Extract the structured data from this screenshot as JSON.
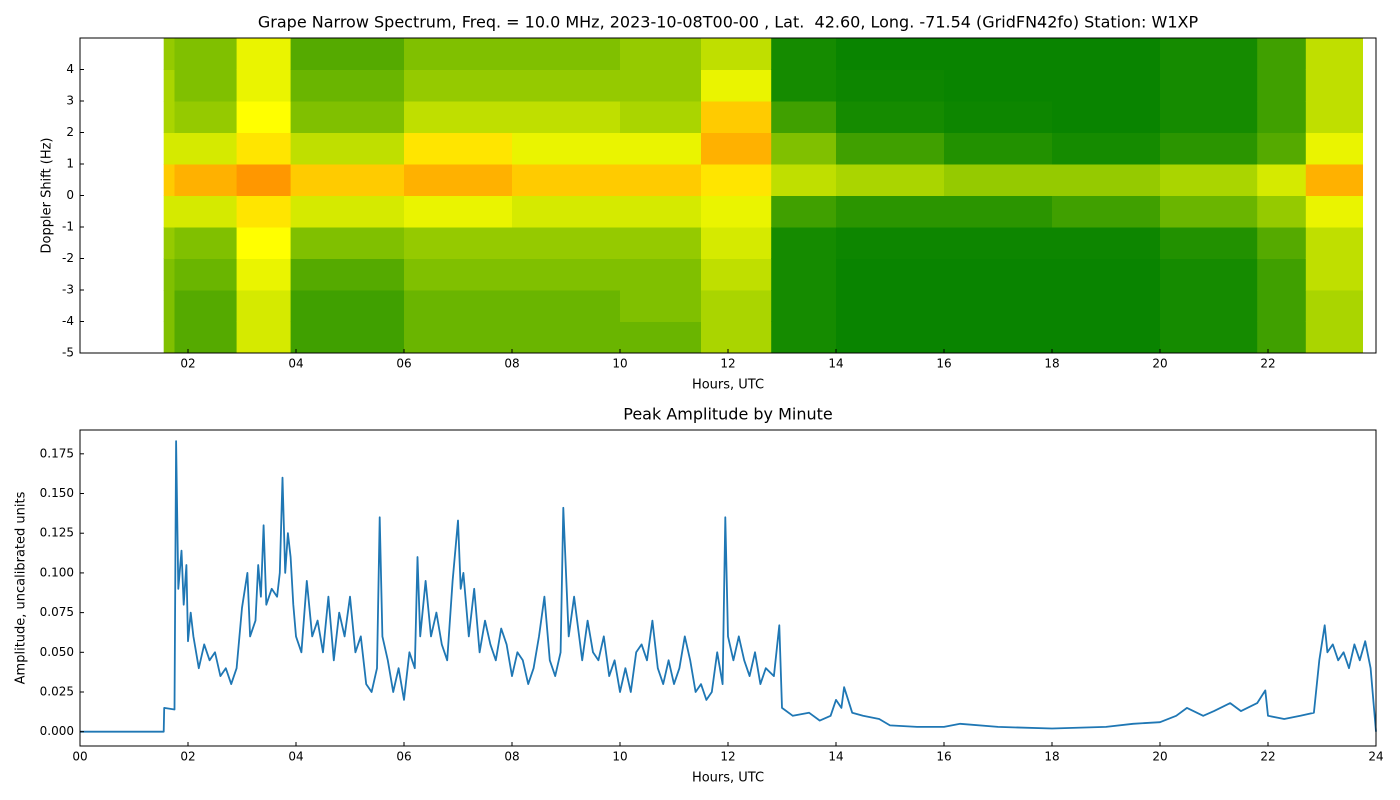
{
  "chart_data": [
    {
      "type": "heatmap",
      "title": "Grape Narrow Spectrum, Freq. = 10.0 MHz, 2023-10-08T00-00 , Lat.  42.60, Long. -71.54 (GridFN42fo) Station: W1XP",
      "xlabel": "Hours, UTC",
      "ylabel": "Doppler Shift (Hz)",
      "xlim": [
        0,
        24
      ],
      "ylim": [
        -5,
        5
      ],
      "xticks": [
        {
          "value": 2,
          "label": "02"
        },
        {
          "value": 4,
          "label": "04"
        },
        {
          "value": 6,
          "label": "06"
        },
        {
          "value": 8,
          "label": "08"
        },
        {
          "value": 10,
          "label": "10"
        },
        {
          "value": 12,
          "label": "12"
        },
        {
          "value": 14,
          "label": "14"
        },
        {
          "value": 16,
          "label": "16"
        },
        {
          "value": 18,
          "label": "18"
        },
        {
          "value": 20,
          "label": "20"
        },
        {
          "value": 22,
          "label": "22"
        }
      ],
      "yticks": [
        -5,
        -4,
        -3,
        -2,
        -1,
        0,
        1,
        2,
        3,
        4
      ],
      "colormap": [
        [
          0,
          "#008000"
        ],
        [
          0.6,
          "#ffff00"
        ],
        [
          1,
          "#ff3000"
        ]
      ],
      "xbins": [
        1.55,
        1.75,
        2.9,
        3.9,
        6,
        8,
        10,
        11.5,
        12.8,
        14,
        16,
        18,
        20,
        21.8,
        22.7,
        23.75
      ],
      "ybins": [
        -5,
        -4,
        -3,
        -2,
        -1,
        0,
        1,
        2,
        3,
        4,
        5
      ],
      "z": [
        [
          0.3,
          0.3,
          0.3,
          0.35,
          0.5,
          0.7,
          0.5,
          0.4,
          0.4,
          0.35
        ],
        [
          0.2,
          0.2,
          0.25,
          0.3,
          0.5,
          0.75,
          0.5,
          0.35,
          0.3,
          0.3
        ],
        [
          0.5,
          0.5,
          0.55,
          0.6,
          0.65,
          0.8,
          0.65,
          0.6,
          0.55,
          0.55
        ],
        [
          0.15,
          0.15,
          0.2,
          0.3,
          0.5,
          0.7,
          0.45,
          0.3,
          0.25,
          0.2
        ],
        [
          0.25,
          0.25,
          0.3,
          0.35,
          0.55,
          0.75,
          0.65,
          0.45,
          0.35,
          0.3
        ],
        [
          0.25,
          0.25,
          0.3,
          0.35,
          0.5,
          0.7,
          0.55,
          0.45,
          0.35,
          0.3
        ],
        [
          0.25,
          0.3,
          0.3,
          0.35,
          0.5,
          0.7,
          0.55,
          0.4,
          0.35,
          0.35
        ],
        [
          0.4,
          0.4,
          0.45,
          0.5,
          0.55,
          0.65,
          0.75,
          0.7,
          0.55,
          0.45
        ],
        [
          0.05,
          0.05,
          0.05,
          0.05,
          0.15,
          0.45,
          0.3,
          0.15,
          0.05,
          0.05
        ],
        [
          0.02,
          0.02,
          0.02,
          0.03,
          0.1,
          0.4,
          0.15,
          0.05,
          0.03,
          0.02
        ],
        [
          0.02,
          0.02,
          0.02,
          0.03,
          0.1,
          0.35,
          0.08,
          0.03,
          0.02,
          0.02
        ],
        [
          0.02,
          0.02,
          0.02,
          0.03,
          0.15,
          0.35,
          0.05,
          0.02,
          0.02,
          0.02
        ],
        [
          0.05,
          0.05,
          0.05,
          0.08,
          0.25,
          0.4,
          0.1,
          0.05,
          0.05,
          0.05
        ],
        [
          0.15,
          0.15,
          0.15,
          0.2,
          0.35,
          0.5,
          0.2,
          0.15,
          0.15,
          0.15
        ],
        [
          0.4,
          0.4,
          0.45,
          0.45,
          0.55,
          0.75,
          0.55,
          0.45,
          0.45,
          0.45
        ]
      ]
    },
    {
      "type": "line",
      "title": "Peak Amplitude by Minute",
      "xlabel": "Hours, UTC",
      "ylabel": "Amplitude, uncalibrated units",
      "color": "#1f77b4",
      "xlim": [
        0,
        24
      ],
      "ylim": [
        -0.009,
        0.19
      ],
      "xticks": [
        {
          "value": 0,
          "label": "00"
        },
        {
          "value": 2,
          "label": "02"
        },
        {
          "value": 4,
          "label": "04"
        },
        {
          "value": 6,
          "label": "06"
        },
        {
          "value": 8,
          "label": "08"
        },
        {
          "value": 10,
          "label": "10"
        },
        {
          "value": 12,
          "label": "12"
        },
        {
          "value": 14,
          "label": "14"
        },
        {
          "value": 16,
          "label": "16"
        },
        {
          "value": 18,
          "label": "18"
        },
        {
          "value": 20,
          "label": "20"
        },
        {
          "value": 22,
          "label": "22"
        },
        {
          "value": 24,
          "label": "24"
        }
      ],
      "yticks": [
        {
          "value": 0,
          "label": "0.000"
        },
        {
          "value": 0.025,
          "label": "0.025"
        },
        {
          "value": 0.05,
          "label": "0.050"
        },
        {
          "value": 0.075,
          "label": "0.075"
        },
        {
          "value": 0.1,
          "label": "0.100"
        },
        {
          "value": 0.125,
          "label": "0.125"
        },
        {
          "value": 0.15,
          "label": "0.150"
        },
        {
          "value": 0.175,
          "label": "0.175"
        }
      ],
      "x": [
        0,
        1.55,
        1.56,
        1.75,
        1.78,
        1.82,
        1.88,
        1.92,
        1.97,
        2.0,
        2.05,
        2.1,
        2.2,
        2.3,
        2.4,
        2.5,
        2.6,
        2.7,
        2.8,
        2.9,
        3.0,
        3.1,
        3.15,
        3.25,
        3.3,
        3.35,
        3.4,
        3.45,
        3.55,
        3.65,
        3.7,
        3.75,
        3.8,
        3.85,
        3.9,
        3.95,
        4.0,
        4.1,
        4.2,
        4.3,
        4.4,
        4.5,
        4.6,
        4.7,
        4.8,
        4.9,
        5.0,
        5.1,
        5.2,
        5.3,
        5.4,
        5.5,
        5.55,
        5.6,
        5.7,
        5.8,
        5.9,
        6.0,
        6.1,
        6.2,
        6.25,
        6.3,
        6.4,
        6.5,
        6.6,
        6.7,
        6.8,
        6.9,
        7.0,
        7.05,
        7.1,
        7.2,
        7.3,
        7.4,
        7.5,
        7.6,
        7.7,
        7.8,
        7.9,
        8.0,
        8.1,
        8.2,
        8.3,
        8.4,
        8.5,
        8.6,
        8.7,
        8.8,
        8.9,
        8.95,
        9.0,
        9.05,
        9.15,
        9.3,
        9.4,
        9.5,
        9.6,
        9.7,
        9.8,
        9.9,
        10.0,
        10.1,
        10.2,
        10.3,
        10.4,
        10.5,
        10.6,
        10.7,
        10.8,
        10.9,
        11.0,
        11.1,
        11.2,
        11.3,
        11.4,
        11.5,
        11.6,
        11.7,
        11.8,
        11.9,
        11.95,
        12.0,
        12.1,
        12.2,
        12.3,
        12.4,
        12.5,
        12.6,
        12.7,
        12.85,
        12.95,
        13.0,
        13.2,
        13.5,
        13.7,
        13.9,
        14.0,
        14.1,
        14.15,
        14.3,
        14.5,
        14.8,
        15.0,
        15.5,
        16.0,
        16.3,
        17.0,
        18.0,
        19.0,
        19.5,
        20.0,
        20.3,
        20.5,
        20.8,
        21.0,
        21.3,
        21.5,
        21.8,
        21.95,
        22.0,
        22.3,
        22.6,
        22.85,
        22.95,
        23.05,
        23.1,
        23.2,
        23.3,
        23.4,
        23.5,
        23.6,
        23.7,
        23.8,
        23.9,
        23.95,
        24.0
      ],
      "values": [
        0,
        0,
        0.015,
        0.014,
        0.183,
        0.09,
        0.114,
        0.08,
        0.105,
        0.057,
        0.075,
        0.06,
        0.04,
        0.055,
        0.045,
        0.05,
        0.035,
        0.04,
        0.03,
        0.04,
        0.078,
        0.1,
        0.06,
        0.07,
        0.105,
        0.085,
        0.13,
        0.08,
        0.09,
        0.085,
        0.1,
        0.16,
        0.1,
        0.125,
        0.11,
        0.08,
        0.06,
        0.05,
        0.095,
        0.06,
        0.07,
        0.05,
        0.085,
        0.045,
        0.075,
        0.06,
        0.085,
        0.05,
        0.06,
        0.03,
        0.025,
        0.04,
        0.135,
        0.06,
        0.045,
        0.025,
        0.04,
        0.02,
        0.05,
        0.04,
        0.11,
        0.06,
        0.095,
        0.06,
        0.075,
        0.055,
        0.045,
        0.095,
        0.133,
        0.09,
        0.1,
        0.06,
        0.09,
        0.05,
        0.07,
        0.055,
        0.045,
        0.065,
        0.055,
        0.035,
        0.05,
        0.045,
        0.03,
        0.04,
        0.06,
        0.085,
        0.045,
        0.035,
        0.05,
        0.141,
        0.1,
        0.06,
        0.085,
        0.045,
        0.07,
        0.05,
        0.045,
        0.06,
        0.035,
        0.045,
        0.025,
        0.04,
        0.025,
        0.05,
        0.055,
        0.045,
        0.07,
        0.04,
        0.03,
        0.045,
        0.03,
        0.04,
        0.06,
        0.045,
        0.025,
        0.03,
        0.02,
        0.025,
        0.05,
        0.03,
        0.135,
        0.06,
        0.045,
        0.06,
        0.045,
        0.035,
        0.05,
        0.03,
        0.04,
        0.035,
        0.067,
        0.015,
        0.01,
        0.012,
        0.007,
        0.01,
        0.02,
        0.015,
        0.028,
        0.012,
        0.01,
        0.008,
        0.004,
        0.003,
        0.003,
        0.005,
        0.003,
        0.002,
        0.003,
        0.005,
        0.006,
        0.01,
        0.015,
        0.01,
        0.013,
        0.018,
        0.013,
        0.018,
        0.026,
        0.01,
        0.008,
        0.01,
        0.012,
        0.045,
        0.067,
        0.05,
        0.055,
        0.045,
        0.05,
        0.04,
        0.055,
        0.045,
        0.057,
        0.04,
        0.02,
        0
      ]
    }
  ]
}
